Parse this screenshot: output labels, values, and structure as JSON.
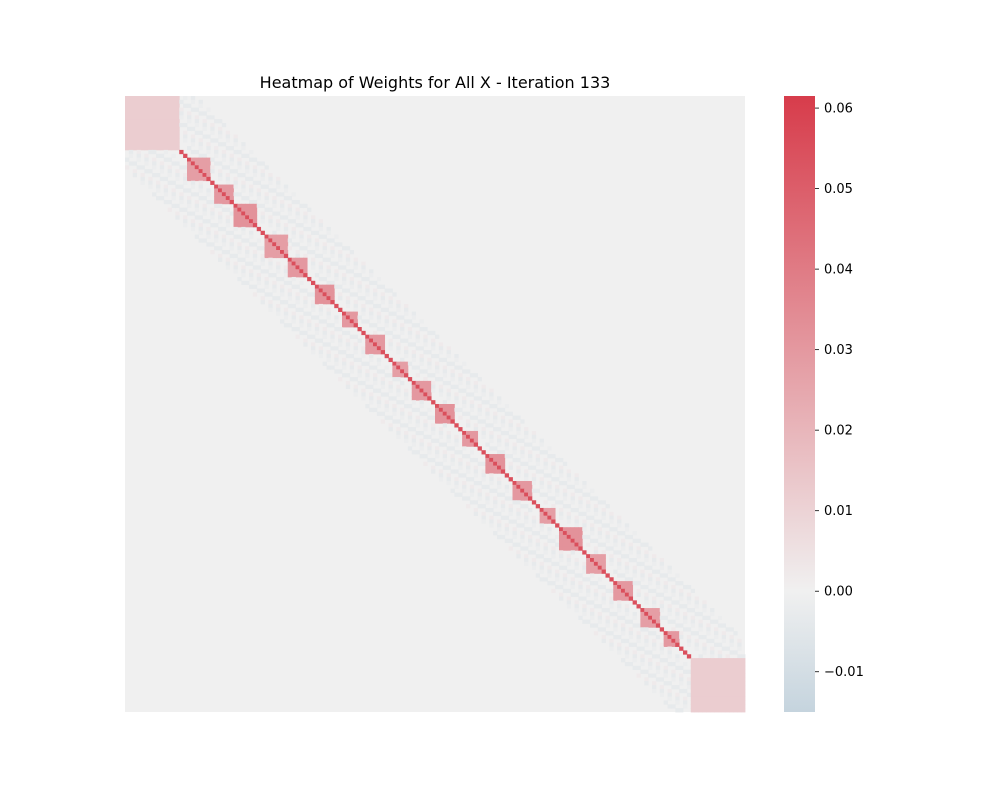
{
  "chart_data": {
    "type": "heatmap",
    "title": "Heatmap of Weights for All X - Iteration 133",
    "xlabel": "",
    "ylabel": "",
    "show_axis_ticks": false,
    "matrix_size": 160,
    "structure": {
      "description_of_values": "banded symmetric weight matrix",
      "corner_blocks": [
        {
          "position": "top-left",
          "rows": [
            0,
            14
          ],
          "cols": [
            0,
            14
          ],
          "value": 0.012
        },
        {
          "position": "bottom-right",
          "rows": [
            146,
            160
          ],
          "cols": [
            146,
            160
          ],
          "value": 0.012
        }
      ],
      "main_diagonal_value": 0.055,
      "diagonal_blocks": [
        {
          "start": 16,
          "size": 6,
          "value": 0.028
        },
        {
          "start": 23,
          "size": 5,
          "value": 0.03
        },
        {
          "start": 28,
          "size": 6,
          "value": 0.032
        },
        {
          "start": 36,
          "size": 6,
          "value": 0.028
        },
        {
          "start": 42,
          "size": 5,
          "value": 0.03
        },
        {
          "start": 49,
          "size": 5,
          "value": 0.032
        },
        {
          "start": 56,
          "size": 4,
          "value": 0.03
        },
        {
          "start": 62,
          "size": 5,
          "value": 0.03
        },
        {
          "start": 69,
          "size": 4,
          "value": 0.028
        },
        {
          "start": 74,
          "size": 5,
          "value": 0.03
        },
        {
          "start": 80,
          "size": 5,
          "value": 0.032
        },
        {
          "start": 87,
          "size": 4,
          "value": 0.03
        },
        {
          "start": 93,
          "size": 5,
          "value": 0.032
        },
        {
          "start": 100,
          "size": 5,
          "value": 0.03
        },
        {
          "start": 107,
          "size": 4,
          "value": 0.028
        },
        {
          "start": 112,
          "size": 6,
          "value": 0.032
        },
        {
          "start": 119,
          "size": 5,
          "value": 0.028
        },
        {
          "start": 126,
          "size": 5,
          "value": 0.03
        },
        {
          "start": 133,
          "size": 5,
          "value": 0.028
        },
        {
          "start": 139,
          "size": 4,
          "value": 0.03
        }
      ],
      "off_diagonal_band_value": -0.003,
      "background_value": 0.0
    },
    "colorbar": {
      "vmin": -0.015,
      "vmax": 0.0615,
      "ticks": [
        -0.01,
        0.0,
        0.01,
        0.02,
        0.03,
        0.04,
        0.05,
        0.06
      ],
      "tick_labels": [
        "−0.01",
        "0.00",
        "0.01",
        "0.02",
        "0.03",
        "0.04",
        "0.05",
        "0.06"
      ],
      "colormap": "diverging",
      "colors": {
        "low": "#c5d4de",
        "mid": "#f0f0f0",
        "high": "#d73c4b"
      }
    },
    "grid": false,
    "legend": "none"
  }
}
